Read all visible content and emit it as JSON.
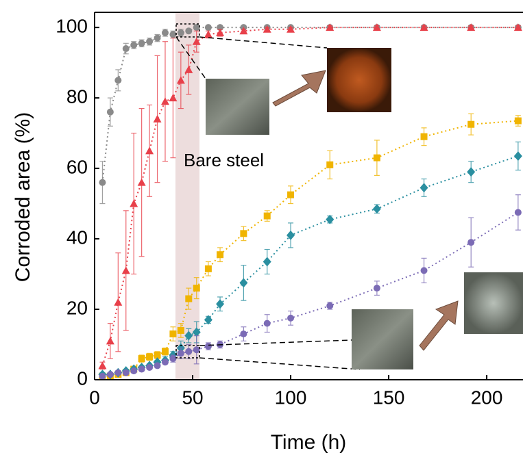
{
  "chart_data": {
    "type": "scatter-line",
    "x_label": "Time (h)",
    "y_label": "Corroded area (%)",
    "annotation": "Bare steel",
    "xlim": [
      0,
      218.5
    ],
    "ylim": [
      0,
      104.3
    ],
    "xticks": [
      0,
      50,
      100,
      150,
      200
    ],
    "yticks": [
      0,
      20,
      40,
      60,
      80,
      100
    ],
    "x": [
      4,
      8,
      12,
      16,
      20,
      24,
      28,
      32,
      36,
      40,
      44,
      48,
      52,
      58,
      64,
      76,
      88,
      100,
      120,
      144,
      168,
      192,
      216
    ],
    "series": [
      {
        "color": "#8a8a8a",
        "marker": "circle",
        "values": [
          56,
          76,
          85,
          94,
          95,
          95.5,
          96,
          97,
          98.5,
          98,
          98.5,
          99,
          100,
          100,
          100,
          100,
          100,
          100,
          100,
          100,
          100,
          100,
          100
        ],
        "errors": [
          6,
          4,
          3,
          1.5,
          1,
          1,
          1,
          1,
          1,
          1,
          1,
          0.5,
          0.5,
          0.5,
          0.5,
          0.3,
          0.3,
          0.3,
          0.3,
          0.3,
          0.3,
          0.3,
          0.3
        ]
      },
      {
        "color": "#e8404a",
        "marker": "triangle",
        "values": [
          4,
          11,
          22,
          31,
          50,
          56,
          65,
          74,
          79,
          80,
          85,
          88,
          96,
          98,
          98.5,
          99,
          99.5,
          99.5,
          100,
          100,
          100,
          100,
          100
        ],
        "errors": [
          1,
          5,
          14,
          17,
          20,
          21,
          13,
          18,
          17,
          17,
          8,
          7,
          3,
          1,
          1,
          0.5,
          0.5,
          0.5,
          0.5,
          0.5,
          0.5,
          0.5,
          0.5
        ]
      },
      {
        "color": "#f0b400",
        "marker": "square",
        "values": [
          1,
          1,
          1.5,
          2,
          3,
          6,
          6.5,
          7,
          8,
          13,
          14,
          23,
          26,
          31.5,
          35.5,
          41.5,
          46.5,
          52.5,
          61,
          63,
          69,
          72.5,
          73.5
        ],
        "errors": [
          0.5,
          0.5,
          0.5,
          0.5,
          0.5,
          1,
          1,
          1,
          1,
          2,
          2,
          3,
          3,
          2,
          2,
          2,
          1.5,
          2.5,
          4,
          5,
          2.5,
          3,
          1.5
        ]
      },
      {
        "color": "#2a8fa0",
        "marker": "diamond",
        "values": [
          1.5,
          1.5,
          2,
          2.5,
          3,
          3.5,
          4,
          5,
          5.5,
          7,
          9,
          12.5,
          13.5,
          17,
          21.5,
          27.5,
          33.5,
          41,
          45.5,
          48.5,
          54.5,
          59,
          63.5
        ],
        "errors": [
          0.5,
          0.5,
          0.5,
          0.5,
          0.5,
          0.5,
          0.5,
          0.5,
          1,
          1,
          2,
          2,
          3,
          1,
          2,
          5,
          3.5,
          3.5,
          1,
          1.2,
          2.5,
          3,
          4
        ]
      },
      {
        "color": "#7b6bb5",
        "marker": "circle",
        "values": [
          1,
          1.5,
          2,
          2,
          2.5,
          3,
          3.5,
          4,
          5,
          6,
          7.5,
          8,
          8.5,
          9.5,
          10,
          13,
          16,
          17.5,
          21,
          26,
          31,
          39,
          47.5
        ],
        "errors": [
          0.5,
          0.5,
          0.5,
          0.5,
          0.5,
          0.5,
          0.5,
          0.5,
          0.5,
          1,
          1.5,
          2,
          4,
          1,
          1,
          2,
          2.5,
          2,
          1,
          2,
          3.5,
          7,
          5
        ]
      }
    ]
  }
}
